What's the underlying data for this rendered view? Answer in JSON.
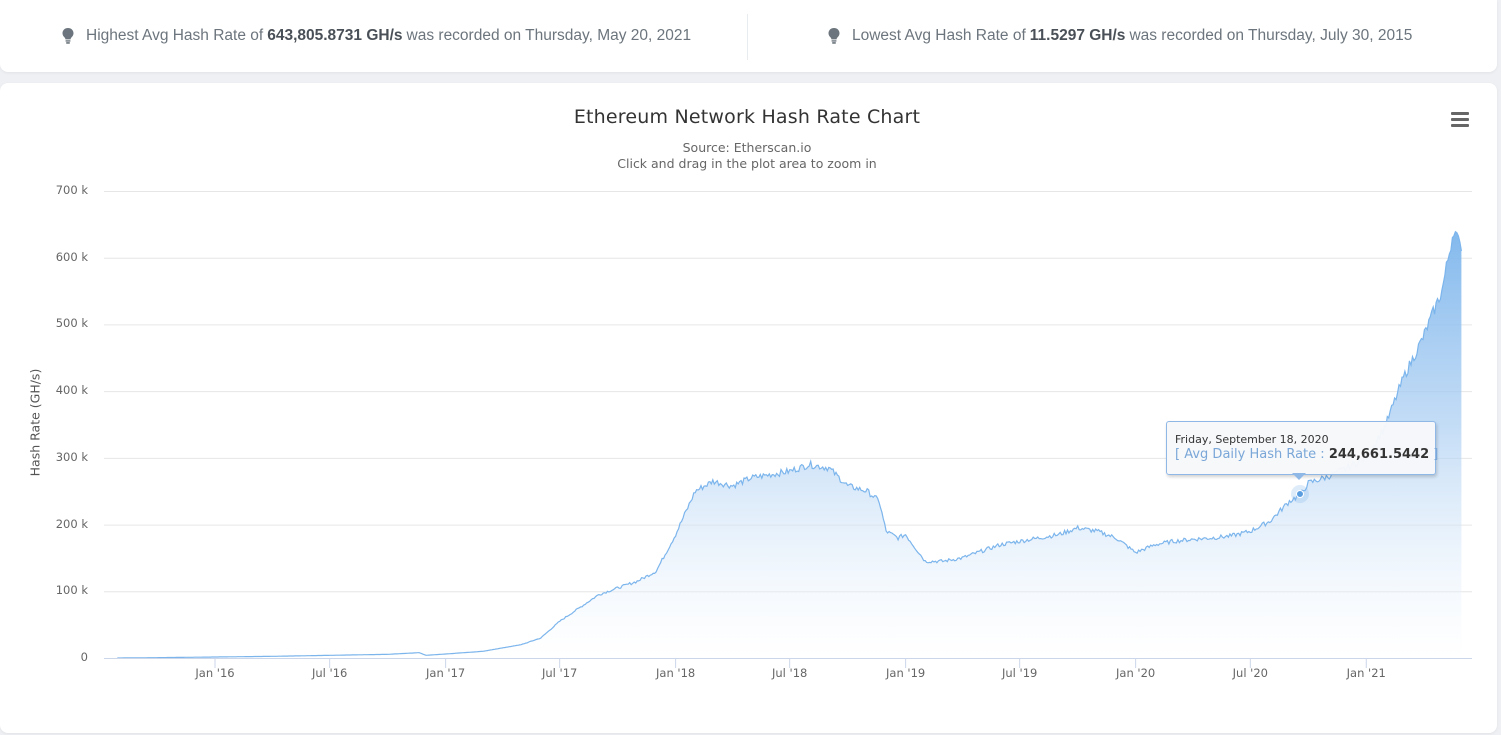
{
  "stats": {
    "highest": {
      "icon": "lightbulb-icon",
      "prefix": "Highest Avg Hash Rate of",
      "value": "643,805.8731 GH/s",
      "suffix": "was recorded on Thursday, May 20, 2021"
    },
    "lowest": {
      "icon": "lightbulb-icon",
      "prefix": "Lowest Avg Hash Rate of",
      "value": "11.5297 GH/s",
      "suffix": "was recorded on Thursday, July 30, 2015"
    }
  },
  "chart": {
    "menu_icon": "hamburger-menu-icon",
    "tooltip": {
      "date": "Friday, September 18, 2020",
      "open": "[",
      "label": "Avg Daily Hash Rate :",
      "value": "244,661.5442",
      "close": "]"
    }
  },
  "chart_data": {
    "type": "area",
    "title": "Ethereum Network Hash Rate Chart",
    "subtitle": "Source: Etherscan.io",
    "subtitle2": "Click and drag in the plot area to zoom in",
    "xlabel": "",
    "ylabel": "Hash Rate (GH/s)",
    "ylim": [
      0,
      700000
    ],
    "y_ticks": [
      "0",
      "100 k",
      "200 k",
      "300 k",
      "400 k",
      "500 k",
      "600 k",
      "700 k"
    ],
    "x_ticks": [
      "Jan '16",
      "Jul '16",
      "Jan '17",
      "Jul '17",
      "Jan '18",
      "Jul '18",
      "Jan '19",
      "Jul '19",
      "Jan '20",
      "Jul '20",
      "Jan '21"
    ],
    "grid": true,
    "legend": "none",
    "series": [
      {
        "name": "Avg Daily Hash Rate",
        "color": "#7cb5ec",
        "x": [
          "2015-07-30",
          "2015-10-01",
          "2016-01-01",
          "2016-04-01",
          "2016-07-01",
          "2016-10-01",
          "2016-11-20",
          "2016-12-01",
          "2017-01-01",
          "2017-03-01",
          "2017-05-01",
          "2017-06-01",
          "2017-07-01",
          "2017-08-01",
          "2017-09-01",
          "2017-10-01",
          "2017-11-01",
          "2017-12-01",
          "2018-01-01",
          "2018-02-01",
          "2018-03-01",
          "2018-04-01",
          "2018-05-01",
          "2018-06-01",
          "2018-07-01",
          "2018-08-01",
          "2018-09-01",
          "2018-10-01",
          "2018-11-01",
          "2018-11-20",
          "2018-12-01",
          "2018-12-20",
          "2019-01-01",
          "2019-02-01",
          "2019-03-01",
          "2019-04-01",
          "2019-05-01",
          "2019-06-01",
          "2019-07-01",
          "2019-08-01",
          "2019-09-01",
          "2019-10-01",
          "2019-11-01",
          "2019-12-01",
          "2020-01-01",
          "2020-02-01",
          "2020-03-01",
          "2020-04-01",
          "2020-05-01",
          "2020-06-01",
          "2020-07-01",
          "2020-08-01",
          "2020-09-01",
          "2020-09-18",
          "2020-10-01",
          "2020-11-01",
          "2020-12-01",
          "2021-01-01",
          "2021-02-01",
          "2021-03-01",
          "2021-04-01",
          "2021-05-01",
          "2021-05-20",
          "2021-06-01"
        ],
        "values": [
          11.5,
          500,
          1500,
          2500,
          4000,
          5500,
          8000,
          4000,
          6000,
          10000,
          20000,
          30000,
          55000,
          75000,
          95000,
          105000,
          115000,
          130000,
          185000,
          250000,
          265000,
          258000,
          270000,
          275000,
          280000,
          290000,
          285000,
          258000,
          250000,
          235000,
          190000,
          180000,
          185000,
          145000,
          145000,
          150000,
          160000,
          170000,
          175000,
          180000,
          185000,
          195000,
          190000,
          180000,
          158000,
          170000,
          175000,
          178000,
          180000,
          183000,
          190000,
          205000,
          235000,
          244661.5,
          262000,
          272000,
          285000,
          300000,
          350000,
          420000,
          480000,
          550000,
          643805.9,
          610000
        ]
      }
    ],
    "highlighted_point": {
      "x": "2020-09-18",
      "y": 244661.5442
    }
  }
}
